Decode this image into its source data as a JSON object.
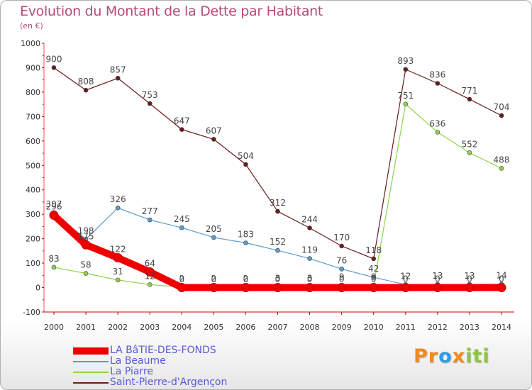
{
  "chart_data": {
    "type": "line",
    "title": "Evolution du Montant de la Dette par Habitant",
    "subtitle": "(en €)",
    "x": [
      "2000",
      "2001",
      "2002",
      "2003",
      "2004",
      "2005",
      "2006",
      "2007",
      "2008",
      "2009",
      "2010",
      "2011",
      "2012",
      "2013",
      "2014"
    ],
    "ylim": [
      -100,
      1000
    ],
    "yticks": [
      -100,
      0,
      100,
      200,
      300,
      400,
      500,
      600,
      700,
      800,
      900,
      1000
    ],
    "grid": false,
    "legend_position": "bottom-left",
    "series": [
      {
        "name": "LA BâTIE-DES-FONDS",
        "color": "#ee0000",
        "values": [
          296,
          175,
          122,
          64,
          0,
          0,
          0,
          0,
          0,
          0,
          0,
          0,
          0,
          0,
          0
        ],
        "labels": [
          "296",
          "175",
          "122",
          "64",
          "0",
          "0",
          "0",
          "0",
          "0",
          "0",
          "0",
          "0",
          "0",
          "0",
          "0"
        ]
      },
      {
        "name": "La Beaume",
        "color": "#5b9bd0",
        "values": [
          307,
          198,
          326,
          277,
          245,
          205,
          183,
          152,
          119,
          76,
          42,
          12,
          13,
          13,
          14
        ],
        "labels": [
          "307",
          "198",
          "326",
          "277",
          "245",
          "205",
          "183",
          "152",
          "119",
          "76",
          "42",
          "12",
          "13",
          "13",
          "14"
        ]
      },
      {
        "name": "La Piarre",
        "color": "#8fd24a",
        "values": [
          83,
          58,
          31,
          12,
          2,
          2,
          2,
          3,
          3,
          9,
          9,
          751,
          636,
          552,
          488
        ],
        "labels": [
          "83",
          "58",
          "31",
          "12",
          "2",
          "2",
          "2",
          "3",
          "3",
          "9",
          "9",
          "751",
          "636",
          "552",
          "488"
        ]
      },
      {
        "name": "Saint-Pierre-d'Argençon",
        "color": "#6b1a1a",
        "values": [
          900,
          808,
          857,
          753,
          647,
          607,
          504,
          312,
          244,
          170,
          118,
          893,
          836,
          771,
          704
        ],
        "labels": [
          "900",
          "808",
          "857",
          "753",
          "647",
          "607",
          "504",
          "312",
          "244",
          "170",
          "118",
          "893",
          "836",
          "771",
          "704"
        ]
      }
    ]
  },
  "logo": {
    "parts": [
      "Pr",
      "o",
      "x",
      "iti"
    ]
  }
}
